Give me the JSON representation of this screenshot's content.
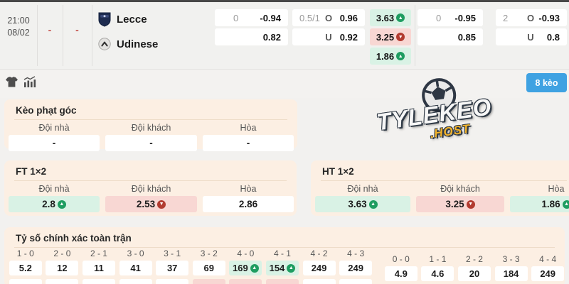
{
  "colors": {
    "accent_blue": "#3fa2e2",
    "panel_bg": "#fcefe3",
    "green_cell_bg": "#d9f2e5",
    "red_cell_bg": "#f8d7d3",
    "up_icon": "#1f9d61",
    "down_icon": "#b23b30",
    "dash_red": "#c4524e"
  },
  "icons": {
    "toolbar": [
      "jersey-icon",
      "stats-chart-icon"
    ],
    "home_logo": "lecce-shield-logo",
    "away_logo": "udinese-circle-logo"
  },
  "match": {
    "time": "21:00",
    "date": "08/02",
    "dash1": "-",
    "dash2": "-",
    "home_team": "Lecce",
    "away_team": "Udinese",
    "odds_button": "8 kèo",
    "handicap_ft": {
      "hdp": "0",
      "home_odds": "-0.94",
      "away_odds": "0.82"
    },
    "ou_ft": {
      "line": "0.5/1",
      "over_label": "O",
      "over_odds": "0.96",
      "under_label": "U",
      "under_odds": "0.92"
    },
    "x12": {
      "home": {
        "value": "3.63",
        "trend": "up",
        "bg": "green"
      },
      "away": {
        "value": "3.25",
        "trend": "down",
        "bg": "red"
      },
      "draw": {
        "value": "1.86",
        "trend": "up",
        "bg": "green"
      }
    },
    "handicap_ht": {
      "hdp": "0",
      "home_odds": "-0.95",
      "away_odds": "0.85"
    },
    "ou_ht": {
      "line": "2",
      "over_label": "O",
      "over_odds": "-0.93",
      "under_label": "U",
      "under_odds": "0.8"
    }
  },
  "watermark": {
    "line1": "TYLEKEO",
    "line2": ".HOST"
  },
  "corner": {
    "title": "Kèo phạt góc",
    "headers": [
      "Đội nhà",
      "Đội khách",
      "Hòa"
    ],
    "cells": [
      {
        "value": "-",
        "trend": "",
        "bg": "white"
      },
      {
        "value": "-",
        "trend": "",
        "bg": "white"
      },
      {
        "value": "-",
        "trend": "",
        "bg": "white"
      }
    ]
  },
  "ft1x2": {
    "title": "FT 1×2",
    "headers": [
      "Đội nhà",
      "Đội khách",
      "Hòa"
    ],
    "cells": [
      {
        "value": "2.8",
        "trend": "up",
        "bg": "green"
      },
      {
        "value": "2.53",
        "trend": "down",
        "bg": "red"
      },
      {
        "value": "2.86",
        "trend": "",
        "bg": "white"
      }
    ]
  },
  "ht1x2": {
    "title": "HT 1×2",
    "headers": [
      "Đội nhà",
      "Đội khách",
      "Hòa"
    ],
    "cells": [
      {
        "value": "3.63",
        "trend": "up",
        "bg": "green"
      },
      {
        "value": "3.25",
        "trend": "down",
        "bg": "red"
      },
      {
        "value": "1.86",
        "trend": "up",
        "bg": "green"
      }
    ]
  },
  "correct_score": {
    "title": "Tỷ số chính xác toàn trận",
    "left_columns": [
      {
        "score": "1 - 0",
        "value": "5.2",
        "trend": "",
        "bg": "white",
        "next_row_bg": "white"
      },
      {
        "score": "2 - 0",
        "value": "12",
        "trend": "",
        "bg": "white",
        "next_row_bg": "white"
      },
      {
        "score": "2 - 1",
        "value": "11",
        "trend": "",
        "bg": "white",
        "next_row_bg": "white"
      },
      {
        "score": "3 - 0",
        "value": "41",
        "trend": "",
        "bg": "white",
        "next_row_bg": "white"
      },
      {
        "score": "3 - 1",
        "value": "37",
        "trend": "",
        "bg": "white",
        "next_row_bg": "white"
      },
      {
        "score": "3 - 2",
        "value": "69",
        "trend": "",
        "bg": "white",
        "next_row_bg": "pink"
      },
      {
        "score": "4 - 0",
        "value": "169",
        "trend": "up",
        "bg": "green",
        "next_row_bg": "pink"
      },
      {
        "score": "4 - 1",
        "value": "154",
        "trend": "up",
        "bg": "green",
        "next_row_bg": "pink"
      },
      {
        "score": "4 - 2",
        "value": "249",
        "trend": "",
        "bg": "white",
        "next_row_bg": "white"
      },
      {
        "score": "4 - 3",
        "value": "249",
        "trend": "",
        "bg": "white",
        "next_row_bg": "white"
      }
    ],
    "right_columns": [
      {
        "score": "0 - 0",
        "value": "4.9"
      },
      {
        "score": "1 - 1",
        "value": "4.6"
      },
      {
        "score": "2 - 2",
        "value": "20"
      },
      {
        "score": "3 - 3",
        "value": "184"
      },
      {
        "score": "4 - 4",
        "value": "249"
      }
    ]
  }
}
